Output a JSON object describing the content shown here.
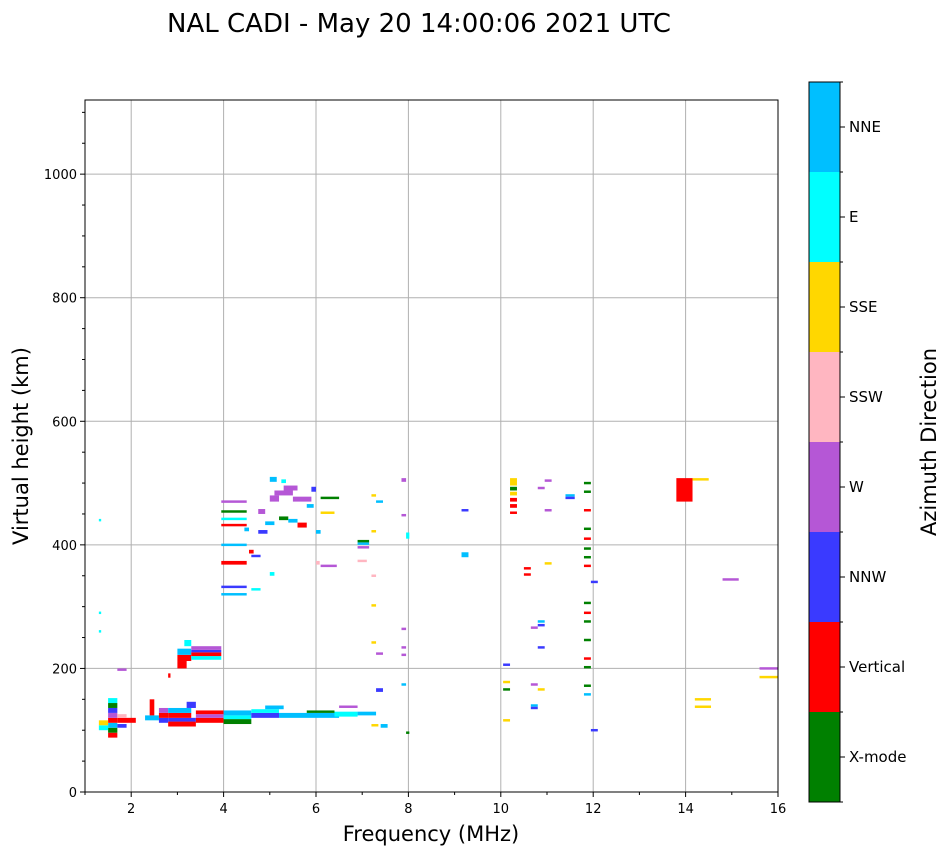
{
  "chart_data": {
    "type": "scatter",
    "title": "NAL CADI - May 20 14:00:06 2021 UTC",
    "xlabel": "Frequency (MHz)",
    "ylabel": "Virtual height (km)",
    "xlim": [
      1,
      16
    ],
    "ylim": [
      0,
      1120
    ],
    "xticks": [
      2,
      4,
      6,
      8,
      10,
      12,
      14,
      16
    ],
    "yticks": [
      0,
      200,
      400,
      600,
      800,
      1000
    ],
    "grid": true,
    "colorbar": {
      "label": "Azimuth Direction",
      "categories": [
        {
          "name": "X-mode",
          "color": "#008000"
        },
        {
          "name": "Vertical",
          "color": "#ff0000"
        },
        {
          "name": "NNW",
          "color": "#3a3aff"
        },
        {
          "name": "W",
          "color": "#b557d6"
        },
        {
          "name": "SSW",
          "color": "#ffb6c1"
        },
        {
          "name": "SSE",
          "color": "#ffd700"
        },
        {
          "name": "E",
          "color": "#00ffff"
        },
        {
          "name": "NNE",
          "color": "#00bfff"
        }
      ]
    },
    "segments": [
      {
        "x0": 1.5,
        "x1": 1.7,
        "y0": 88,
        "y1": 96,
        "c": "Vertical"
      },
      {
        "x0": 1.5,
        "x1": 1.7,
        "y0": 96,
        "y1": 104,
        "c": "X-mode"
      },
      {
        "x0": 1.5,
        "x1": 1.7,
        "y0": 104,
        "y1": 112,
        "c": "NNE"
      },
      {
        "x0": 1.5,
        "x1": 1.7,
        "y0": 112,
        "y1": 120,
        "c": "Vertical"
      },
      {
        "x0": 1.5,
        "x1": 1.7,
        "y0": 120,
        "y1": 128,
        "c": "W"
      },
      {
        "x0": 1.5,
        "x1": 1.7,
        "y0": 128,
        "y1": 136,
        "c": "NNW"
      },
      {
        "x0": 1.5,
        "x1": 1.7,
        "y0": 136,
        "y1": 144,
        "c": "X-mode"
      },
      {
        "x0": 1.5,
        "x1": 1.7,
        "y0": 144,
        "y1": 152,
        "c": "E"
      },
      {
        "x0": 1.3,
        "x1": 1.5,
        "y0": 100,
        "y1": 108,
        "c": "E"
      },
      {
        "x0": 1.3,
        "x1": 1.5,
        "y0": 108,
        "y1": 116,
        "c": "SSE"
      },
      {
        "x0": 1.7,
        "x1": 2.1,
        "y0": 112,
        "y1": 120,
        "c": "Vertical"
      },
      {
        "x0": 1.7,
        "x1": 1.9,
        "y0": 120,
        "y1": 126,
        "c": "SSW"
      },
      {
        "x0": 1.7,
        "x1": 1.9,
        "y0": 104,
        "y1": 110,
        "c": "NNW"
      },
      {
        "x0": 1.7,
        "x1": 1.9,
        "y0": 196,
        "y1": 200,
        "c": "W"
      },
      {
        "x0": 1.3,
        "x1": 1.35,
        "y0": 438,
        "y1": 442,
        "c": "E"
      },
      {
        "x0": 1.3,
        "x1": 1.35,
        "y0": 288,
        "y1": 292,
        "c": "E"
      },
      {
        "x0": 1.3,
        "x1": 1.35,
        "y0": 258,
        "y1": 262,
        "c": "E"
      },
      {
        "x0": 2.3,
        "x1": 2.6,
        "y0": 116,
        "y1": 124,
        "c": "NNE"
      },
      {
        "x0": 2.4,
        "x1": 2.5,
        "y0": 124,
        "y1": 150,
        "c": "Vertical"
      },
      {
        "x0": 2.6,
        "x1": 2.8,
        "y0": 112,
        "y1": 120,
        "c": "NNW"
      },
      {
        "x0": 2.6,
        "x1": 2.8,
        "y0": 120,
        "y1": 128,
        "c": "Vertical"
      },
      {
        "x0": 2.6,
        "x1": 2.8,
        "y0": 128,
        "y1": 136,
        "c": "W"
      },
      {
        "x0": 2.8,
        "x1": 3.4,
        "y0": 106,
        "y1": 114,
        "c": "Vertical"
      },
      {
        "x0": 2.8,
        "x1": 3.4,
        "y0": 114,
        "y1": 120,
        "c": "NNW"
      },
      {
        "x0": 2.8,
        "x1": 3.3,
        "y0": 120,
        "y1": 128,
        "c": "Vertical"
      },
      {
        "x0": 2.8,
        "x1": 3.3,
        "y0": 128,
        "y1": 136,
        "c": "NNE"
      },
      {
        "x0": 3.2,
        "x1": 3.4,
        "y0": 136,
        "y1": 146,
        "c": "NNW"
      },
      {
        "x0": 3.4,
        "x1": 4.0,
        "y0": 112,
        "y1": 120,
        "c": "Vertical"
      },
      {
        "x0": 3.4,
        "x1": 4.0,
        "y0": 120,
        "y1": 126,
        "c": "W"
      },
      {
        "x0": 3.4,
        "x1": 4.0,
        "y0": 126,
        "y1": 132,
        "c": "Vertical"
      },
      {
        "x0": 4.0,
        "x1": 4.6,
        "y0": 110,
        "y1": 118,
        "c": "X-mode"
      },
      {
        "x0": 4.0,
        "x1": 4.6,
        "y0": 118,
        "y1": 124,
        "c": "E"
      },
      {
        "x0": 4.0,
        "x1": 4.6,
        "y0": 124,
        "y1": 132,
        "c": "NNE"
      },
      {
        "x0": 4.6,
        "x1": 5.2,
        "y0": 120,
        "y1": 128,
        "c": "NNW"
      },
      {
        "x0": 4.6,
        "x1": 5.2,
        "y0": 128,
        "y1": 134,
        "c": "E"
      },
      {
        "x0": 4.9,
        "x1": 5.3,
        "y0": 134,
        "y1": 140,
        "c": "NNE"
      },
      {
        "x0": 5.2,
        "x1": 6.5,
        "y0": 120,
        "y1": 128,
        "c": "NNE"
      },
      {
        "x0": 5.8,
        "x1": 6.4,
        "y0": 128,
        "y1": 132,
        "c": "X-mode"
      },
      {
        "x0": 6.4,
        "x1": 6.9,
        "y0": 122,
        "y1": 130,
        "c": "E"
      },
      {
        "x0": 6.5,
        "x1": 6.9,
        "y0": 136,
        "y1": 140,
        "c": "W"
      },
      {
        "x0": 6.9,
        "x1": 7.3,
        "y0": 124,
        "y1": 130,
        "c": "NNE"
      },
      {
        "x0": 7.2,
        "x1": 7.35,
        "y0": 106,
        "y1": 110,
        "c": "SSE"
      },
      {
        "x0": 7.4,
        "x1": 7.55,
        "y0": 104,
        "y1": 110,
        "c": "NNE"
      },
      {
        "x0": 7.95,
        "x1": 8.02,
        "y0": 94,
        "y1": 98,
        "c": "X-mode"
      },
      {
        "x0": 3.0,
        "x1": 3.2,
        "y0": 200,
        "y1": 212,
        "c": "Vertical"
      },
      {
        "x0": 3.0,
        "x1": 3.3,
        "y0": 212,
        "y1": 222,
        "c": "Vertical"
      },
      {
        "x0": 3.0,
        "x1": 3.3,
        "y0": 222,
        "y1": 232,
        "c": "NNE"
      },
      {
        "x0": 3.3,
        "x1": 3.95,
        "y0": 214,
        "y1": 220,
        "c": "E"
      },
      {
        "x0": 3.3,
        "x1": 3.95,
        "y0": 220,
        "y1": 226,
        "c": "Vertical"
      },
      {
        "x0": 3.3,
        "x1": 3.95,
        "y0": 226,
        "y1": 230,
        "c": "NNW"
      },
      {
        "x0": 3.3,
        "x1": 3.95,
        "y0": 230,
        "y1": 236,
        "c": "W"
      },
      {
        "x0": 3.15,
        "x1": 3.3,
        "y0": 236,
        "y1": 246,
        "c": "E"
      },
      {
        "x0": 2.8,
        "x1": 2.85,
        "y0": 185,
        "y1": 192,
        "c": "Vertical"
      },
      {
        "x0": 3.95,
        "x1": 4.5,
        "y0": 318,
        "y1": 322,
        "c": "NNE"
      },
      {
        "x0": 3.95,
        "x1": 4.5,
        "y0": 330,
        "y1": 334,
        "c": "NNW"
      },
      {
        "x0": 3.95,
        "x1": 4.5,
        "y0": 368,
        "y1": 374,
        "c": "Vertical"
      },
      {
        "x0": 3.95,
        "x1": 4.5,
        "y0": 398,
        "y1": 402,
        "c": "NNE"
      },
      {
        "x0": 3.95,
        "x1": 4.5,
        "y0": 430,
        "y1": 434,
        "c": "Vertical"
      },
      {
        "x0": 3.95,
        "x1": 4.5,
        "y0": 440,
        "y1": 444,
        "c": "E"
      },
      {
        "x0": 3.95,
        "x1": 4.5,
        "y0": 452,
        "y1": 456,
        "c": "X-mode"
      },
      {
        "x0": 3.95,
        "x1": 4.5,
        "y0": 468,
        "y1": 472,
        "c": "W"
      },
      {
        "x0": 4.6,
        "x1": 4.8,
        "y0": 326,
        "y1": 330,
        "c": "E"
      },
      {
        "x0": 4.6,
        "x1": 4.8,
        "y0": 380,
        "y1": 384,
        "c": "NNW"
      },
      {
        "x0": 4.75,
        "x1": 4.95,
        "y0": 418,
        "y1": 424,
        "c": "NNW"
      },
      {
        "x0": 4.75,
        "x1": 4.9,
        "y0": 450,
        "y1": 458,
        "c": "W"
      },
      {
        "x0": 4.9,
        "x1": 5.1,
        "y0": 432,
        "y1": 438,
        "c": "NNE"
      },
      {
        "x0": 5.0,
        "x1": 5.2,
        "y0": 470,
        "y1": 480,
        "c": "W"
      },
      {
        "x0": 5.1,
        "x1": 5.5,
        "y0": 480,
        "y1": 488,
        "c": "W"
      },
      {
        "x0": 5.3,
        "x1": 5.6,
        "y0": 488,
        "y1": 496,
        "c": "W"
      },
      {
        "x0": 5.5,
        "x1": 5.9,
        "y0": 470,
        "y1": 478,
        "c": "W"
      },
      {
        "x0": 5.2,
        "x1": 5.4,
        "y0": 440,
        "y1": 446,
        "c": "X-mode"
      },
      {
        "x0": 5.4,
        "x1": 5.6,
        "y0": 436,
        "y1": 442,
        "c": "NNE"
      },
      {
        "x0": 5.6,
        "x1": 5.8,
        "y0": 428,
        "y1": 436,
        "c": "Vertical"
      },
      {
        "x0": 5.8,
        "x1": 5.95,
        "y0": 460,
        "y1": 466,
        "c": "NNE"
      },
      {
        "x0": 5.9,
        "x1": 6.0,
        "y0": 486,
        "y1": 494,
        "c": "NNW"
      },
      {
        "x0": 6.1,
        "x1": 6.5,
        "y0": 474,
        "y1": 478,
        "c": "X-mode"
      },
      {
        "x0": 6.1,
        "x1": 6.4,
        "y0": 450,
        "y1": 454,
        "c": "SSE"
      },
      {
        "x0": 6.1,
        "x1": 6.45,
        "y0": 364,
        "y1": 368,
        "c": "W"
      },
      {
        "x0": 5.0,
        "x1": 5.15,
        "y0": 502,
        "y1": 510,
        "c": "NNE"
      },
      {
        "x0": 5.25,
        "x1": 5.35,
        "y0": 500,
        "y1": 506,
        "c": "E"
      },
      {
        "x0": 4.55,
        "x1": 4.65,
        "y0": 386,
        "y1": 392,
        "c": "Vertical"
      },
      {
        "x0": 4.45,
        "x1": 4.55,
        "y0": 422,
        "y1": 428,
        "c": "NNE"
      },
      {
        "x0": 5.0,
        "x1": 5.1,
        "y0": 350,
        "y1": 356,
        "c": "E"
      },
      {
        "x0": 6.0,
        "x1": 6.1,
        "y0": 418,
        "y1": 424,
        "c": "NNE"
      },
      {
        "x0": 6.0,
        "x1": 6.08,
        "y0": 368,
        "y1": 374,
        "c": "SSW"
      },
      {
        "x0": 6.9,
        "x1": 7.15,
        "y0": 394,
        "y1": 398,
        "c": "W"
      },
      {
        "x0": 6.9,
        "x1": 7.15,
        "y0": 400,
        "y1": 404,
        "c": "NNE"
      },
      {
        "x0": 6.9,
        "x1": 7.15,
        "y0": 404,
        "y1": 408,
        "c": "X-mode"
      },
      {
        "x0": 6.9,
        "x1": 7.1,
        "y0": 372,
        "y1": 376,
        "c": "SSW"
      },
      {
        "x0": 7.2,
        "x1": 7.3,
        "y0": 478,
        "y1": 482,
        "c": "SSE"
      },
      {
        "x0": 7.2,
        "x1": 7.3,
        "y0": 420,
        "y1": 424,
        "c": "SSE"
      },
      {
        "x0": 7.2,
        "x1": 7.3,
        "y0": 348,
        "y1": 352,
        "c": "SSW"
      },
      {
        "x0": 7.2,
        "x1": 7.3,
        "y0": 300,
        "y1": 304,
        "c": "SSE"
      },
      {
        "x0": 7.2,
        "x1": 7.3,
        "y0": 240,
        "y1": 244,
        "c": "SSE"
      },
      {
        "x0": 7.3,
        "x1": 7.45,
        "y0": 468,
        "y1": 472,
        "c": "NNE"
      },
      {
        "x0": 7.3,
        "x1": 7.45,
        "y0": 222,
        "y1": 226,
        "c": "W"
      },
      {
        "x0": 7.3,
        "x1": 7.45,
        "y0": 162,
        "y1": 168,
        "c": "NNW"
      },
      {
        "x0": 7.85,
        "x1": 7.95,
        "y0": 502,
        "y1": 508,
        "c": "W"
      },
      {
        "x0": 7.85,
        "x1": 7.95,
        "y0": 446,
        "y1": 450,
        "c": "W"
      },
      {
        "x0": 7.85,
        "x1": 7.95,
        "y0": 262,
        "y1": 266,
        "c": "W"
      },
      {
        "x0": 7.85,
        "x1": 7.95,
        "y0": 232,
        "y1": 236,
        "c": "W"
      },
      {
        "x0": 7.85,
        "x1": 7.95,
        "y0": 220,
        "y1": 224,
        "c": "W"
      },
      {
        "x0": 7.85,
        "x1": 7.95,
        "y0": 172,
        "y1": 176,
        "c": "NNE"
      },
      {
        "x0": 7.95,
        "x1": 8.02,
        "y0": 410,
        "y1": 420,
        "c": "E"
      },
      {
        "x0": 9.15,
        "x1": 9.3,
        "y0": 454,
        "y1": 458,
        "c": "NNW"
      },
      {
        "x0": 9.15,
        "x1": 9.3,
        "y0": 380,
        "y1": 388,
        "c": "NNE"
      },
      {
        "x0": 10.05,
        "x1": 10.2,
        "y0": 204,
        "y1": 208,
        "c": "NNW"
      },
      {
        "x0": 10.05,
        "x1": 10.2,
        "y0": 176,
        "y1": 180,
        "c": "SSE"
      },
      {
        "x0": 10.05,
        "x1": 10.2,
        "y0": 164,
        "y1": 168,
        "c": "X-mode"
      },
      {
        "x0": 10.05,
        "x1": 10.2,
        "y0": 114,
        "y1": 118,
        "c": "SSE"
      },
      {
        "x0": 10.2,
        "x1": 10.35,
        "y0": 496,
        "y1": 508,
        "c": "SSE"
      },
      {
        "x0": 10.2,
        "x1": 10.35,
        "y0": 488,
        "y1": 494,
        "c": "X-mode"
      },
      {
        "x0": 10.2,
        "x1": 10.35,
        "y0": 480,
        "y1": 486,
        "c": "SSE"
      },
      {
        "x0": 10.2,
        "x1": 10.35,
        "y0": 470,
        "y1": 476,
        "c": "Vertical"
      },
      {
        "x0": 10.2,
        "x1": 10.35,
        "y0": 460,
        "y1": 466,
        "c": "Vertical"
      },
      {
        "x0": 10.2,
        "x1": 10.35,
        "y0": 450,
        "y1": 454,
        "c": "Vertical"
      },
      {
        "x0": 10.5,
        "x1": 10.65,
        "y0": 360,
        "y1": 364,
        "c": "Vertical"
      },
      {
        "x0": 10.5,
        "x1": 10.65,
        "y0": 350,
        "y1": 354,
        "c": "Vertical"
      },
      {
        "x0": 10.65,
        "x1": 10.8,
        "y0": 264,
        "y1": 268,
        "c": "W"
      },
      {
        "x0": 10.65,
        "x1": 10.8,
        "y0": 172,
        "y1": 176,
        "c": "W"
      },
      {
        "x0": 10.65,
        "x1": 10.8,
        "y0": 138,
        "y1": 142,
        "c": "NNE"
      },
      {
        "x0": 10.65,
        "x1": 10.8,
        "y0": 134,
        "y1": 138,
        "c": "NNW"
      },
      {
        "x0": 10.8,
        "x1": 10.95,
        "y0": 274,
        "y1": 278,
        "c": "NNE"
      },
      {
        "x0": 10.8,
        "x1": 10.95,
        "y0": 268,
        "y1": 272,
        "c": "NNW"
      },
      {
        "x0": 10.8,
        "x1": 10.95,
        "y0": 232,
        "y1": 236,
        "c": "NNW"
      },
      {
        "x0": 10.8,
        "x1": 10.95,
        "y0": 164,
        "y1": 168,
        "c": "SSE"
      },
      {
        "x0": 10.8,
        "x1": 10.95,
        "y0": 490,
        "y1": 494,
        "c": "W"
      },
      {
        "x0": 10.95,
        "x1": 11.1,
        "y0": 502,
        "y1": 506,
        "c": "W"
      },
      {
        "x0": 10.95,
        "x1": 11.1,
        "y0": 454,
        "y1": 458,
        "c": "W"
      },
      {
        "x0": 10.95,
        "x1": 11.1,
        "y0": 368,
        "y1": 372,
        "c": "SSE"
      },
      {
        "x0": 11.4,
        "x1": 11.6,
        "y0": 478,
        "y1": 482,
        "c": "NNE"
      },
      {
        "x0": 11.4,
        "x1": 11.6,
        "y0": 474,
        "y1": 478,
        "c": "NNW"
      },
      {
        "x0": 11.8,
        "x1": 11.95,
        "y0": 498,
        "y1": 502,
        "c": "X-mode"
      },
      {
        "x0": 11.8,
        "x1": 11.95,
        "y0": 484,
        "y1": 488,
        "c": "X-mode"
      },
      {
        "x0": 11.8,
        "x1": 11.95,
        "y0": 454,
        "y1": 458,
        "c": "Vertical"
      },
      {
        "x0": 11.8,
        "x1": 11.95,
        "y0": 424,
        "y1": 428,
        "c": "X-mode"
      },
      {
        "x0": 11.8,
        "x1": 11.95,
        "y0": 408,
        "y1": 412,
        "c": "Vertical"
      },
      {
        "x0": 11.8,
        "x1": 11.95,
        "y0": 392,
        "y1": 396,
        "c": "X-mode"
      },
      {
        "x0": 11.8,
        "x1": 11.95,
        "y0": 378,
        "y1": 382,
        "c": "X-mode"
      },
      {
        "x0": 11.8,
        "x1": 11.95,
        "y0": 364,
        "y1": 368,
        "c": "Vertical"
      },
      {
        "x0": 11.8,
        "x1": 11.95,
        "y0": 304,
        "y1": 308,
        "c": "X-mode"
      },
      {
        "x0": 11.8,
        "x1": 11.95,
        "y0": 288,
        "y1": 292,
        "c": "Vertical"
      },
      {
        "x0": 11.8,
        "x1": 11.95,
        "y0": 274,
        "y1": 278,
        "c": "X-mode"
      },
      {
        "x0": 11.8,
        "x1": 11.95,
        "y0": 244,
        "y1": 248,
        "c": "X-mode"
      },
      {
        "x0": 11.8,
        "x1": 11.95,
        "y0": 214,
        "y1": 218,
        "c": "Vertical"
      },
      {
        "x0": 11.8,
        "x1": 11.95,
        "y0": 200,
        "y1": 204,
        "c": "X-mode"
      },
      {
        "x0": 11.8,
        "x1": 11.95,
        "y0": 170,
        "y1": 174,
        "c": "X-mode"
      },
      {
        "x0": 11.8,
        "x1": 11.95,
        "y0": 156,
        "y1": 160,
        "c": "NNE"
      },
      {
        "x0": 11.95,
        "x1": 12.1,
        "y0": 338,
        "y1": 342,
        "c": "NNW"
      },
      {
        "x0": 11.95,
        "x1": 12.1,
        "y0": 98,
        "y1": 102,
        "c": "NNW"
      },
      {
        "x0": 13.8,
        "x1": 14.15,
        "y0": 470,
        "y1": 508,
        "c": "Vertical"
      },
      {
        "x0": 14.15,
        "x1": 14.5,
        "y0": 504,
        "y1": 508,
        "c": "SSE"
      },
      {
        "x0": 14.2,
        "x1": 14.55,
        "y0": 148,
        "y1": 152,
        "c": "SSE"
      },
      {
        "x0": 14.2,
        "x1": 14.55,
        "y0": 136,
        "y1": 140,
        "c": "SSE"
      },
      {
        "x0": 14.8,
        "x1": 15.15,
        "y0": 342,
        "y1": 346,
        "c": "W"
      },
      {
        "x0": 15.6,
        "x1": 16.0,
        "y0": 198,
        "y1": 202,
        "c": "W"
      },
      {
        "x0": 15.6,
        "x1": 16.0,
        "y0": 184,
        "y1": 188,
        "c": "SSE"
      }
    ]
  }
}
